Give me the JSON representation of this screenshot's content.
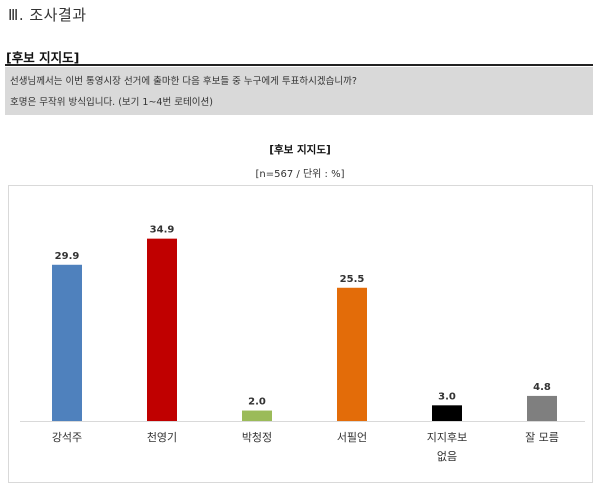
{
  "section_heading": "Ⅲ. 조사결과",
  "sub_heading": "[후보 지지도]",
  "question": {
    "line1": "선생님께서는 이번 통영시장 선거에 출마한 다음 후보들 중 누구에게 투표하시겠습니까?",
    "line2": "호명은 무작위 방식입니다. (보기 1~4번 로테이션)"
  },
  "chart_data": {
    "type": "bar",
    "title": "[후보 지지도]",
    "subtitle": "[n=567 / 단위 : %]",
    "categories": [
      "강석주",
      "천영기",
      "박청정",
      "서필언",
      "지지후보\n없음",
      "잘 모름"
    ],
    "values": [
      29.9,
      34.9,
      2.0,
      25.5,
      3.0,
      4.8
    ],
    "value_labels": [
      "29.9",
      "34.9",
      "2.0",
      "25.5",
      "3.0",
      "4.8"
    ],
    "colors": [
      "#4f81bd",
      "#c00000",
      "#9bbb59",
      "#e36c09",
      "#000000",
      "#7f7f7f"
    ],
    "xlabel": "",
    "ylabel": "",
    "ylim": [
      0,
      40
    ],
    "grid": false,
    "legend": "none"
  }
}
